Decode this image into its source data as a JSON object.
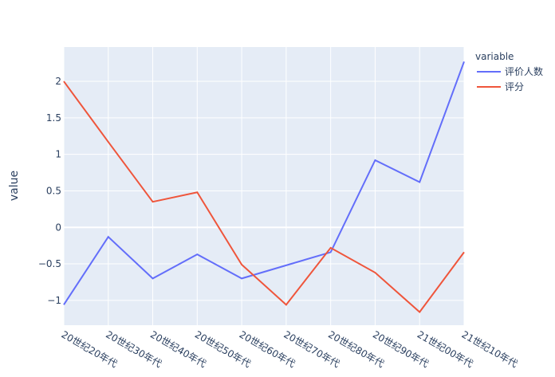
{
  "chart_data": {
    "type": "line",
    "categories": [
      "20世纪20年代",
      "20世纪30年代",
      "20世纪40年代",
      "20世纪50年代",
      "20世纪60年代",
      "20世纪70年代",
      "20世纪80年代",
      "20世纪90年代",
      "21世纪00年代",
      "21世纪10年代"
    ],
    "series": [
      {
        "name": "评价人数",
        "color": "#636efa",
        "values": [
          -1.06,
          -0.13,
          -0.7,
          -0.37,
          -0.7,
          -0.52,
          -0.34,
          0.92,
          0.62,
          2.27
        ]
      },
      {
        "name": "评分",
        "color": "#ef553b",
        "values": [
          2.0,
          1.17,
          0.35,
          0.48,
          -0.51,
          -1.06,
          -0.28,
          -0.62,
          -1.16,
          -0.34
        ]
      }
    ],
    "y_label": "value",
    "legend_title": "variable",
    "ylim": [
      -1.34,
      2.47
    ],
    "yticks": [
      {
        "value": -1,
        "label": "−1"
      },
      {
        "value": -0.5,
        "label": "−0.5"
      },
      0,
      0.5,
      1,
      1.5,
      2
    ],
    "grid": true
  }
}
